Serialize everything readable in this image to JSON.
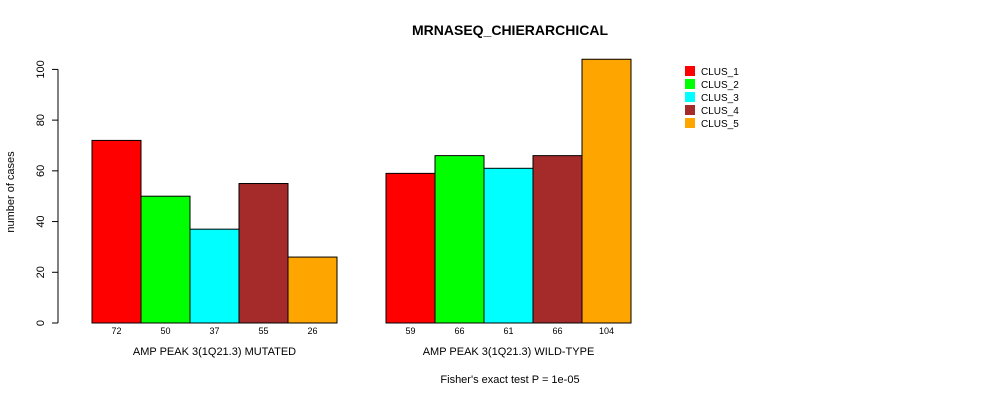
{
  "chart_data": {
    "type": "bar",
    "title": "MRNASEQ_CHIERARCHICAL",
    "ylabel": "number of cases",
    "ylim": [
      0,
      104
    ],
    "yticks": [
      0,
      20,
      40,
      60,
      80,
      100
    ],
    "groups": [
      "AMP PEAK  3(1Q21.3) MUTATED",
      "AMP PEAK  3(1Q21.3) WILD-TYPE"
    ],
    "series": [
      {
        "name": "CLUS_1",
        "color": "#ff0000",
        "values": [
          72,
          59
        ]
      },
      {
        "name": "CLUS_2",
        "color": "#00ff00",
        "values": [
          50,
          66
        ]
      },
      {
        "name": "CLUS_3",
        "color": "#00ffff",
        "values": [
          37,
          61
        ]
      },
      {
        "name": "CLUS_4",
        "color": "#a52a2a",
        "values": [
          55,
          66
        ]
      },
      {
        "name": "CLUS_5",
        "color": "#ffa500",
        "values": [
          26,
          104
        ]
      }
    ],
    "legend_position": "top-right",
    "footnote": "Fisher's exact test P = 1e-05"
  }
}
